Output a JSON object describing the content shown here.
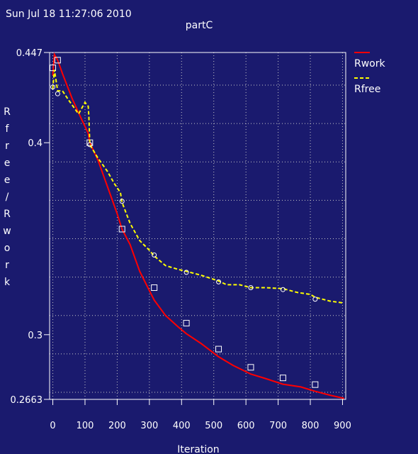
{
  "timestamp": "Sun Jul 18 11:27:06 2010",
  "chart_data": {
    "type": "line",
    "title": "partC",
    "xlabel": "Iteration",
    "ylabel": "Rfree / Rwork",
    "xlim": [
      -10,
      910
    ],
    "ylim": [
      0.2663,
      0.447
    ],
    "x_ticks": [
      "0",
      "100",
      "200",
      "300",
      "400",
      "500",
      "600",
      "700",
      "800",
      "900"
    ],
    "x_tick_values": [
      0,
      100,
      200,
      300,
      400,
      500,
      600,
      700,
      800,
      900
    ],
    "y_ticks": [
      "0.2663",
      "0.3",
      "0.4",
      "0.447"
    ],
    "y_tick_values": [
      0.2663,
      0.3,
      0.4,
      0.447
    ],
    "grid": true,
    "legend_position": "right",
    "series": [
      {
        "name": "Rwork",
        "color": "#ff0000",
        "style": "solid",
        "marker": "square",
        "x": [
          0,
          5,
          15,
          30,
          60,
          90,
          110,
          115,
          140,
          170,
          200,
          215,
          240,
          270,
          300,
          315,
          350,
          390,
          415,
          460,
          515,
          560,
          615,
          660,
          715,
          770,
          815,
          860,
          905
        ],
        "y": [
          0.435,
          0.446,
          0.443,
          0.436,
          0.423,
          0.412,
          0.405,
          0.4,
          0.391,
          0.377,
          0.363,
          0.355,
          0.347,
          0.333,
          0.323,
          0.318,
          0.31,
          0.304,
          0.3005,
          0.2955,
          0.2885,
          0.284,
          0.2795,
          0.2772,
          0.2742,
          0.2728,
          0.2705,
          0.2685,
          0.2668
        ],
        "marker_x": [
          0,
          15,
          115,
          215,
          315,
          415,
          515,
          615,
          715,
          815
        ],
        "marker_y": [
          0.439,
          0.443,
          0.4,
          0.355,
          0.3245,
          0.306,
          0.2925,
          0.283,
          0.2775,
          0.274
        ]
      },
      {
        "name": "Rfree",
        "color": "#ffff00",
        "style": "dashed",
        "marker": "circle",
        "x": [
          0,
          5,
          15,
          30,
          50,
          80,
          100,
          110,
          112,
          115,
          140,
          170,
          190,
          210,
          215,
          240,
          270,
          300,
          315,
          350,
          390,
          415,
          460,
          515,
          540,
          580,
          615,
          660,
          715,
          760,
          800,
          815,
          860,
          905
        ],
        "y": [
          0.428,
          0.438,
          0.427,
          0.427,
          0.422,
          0.415,
          0.421,
          0.419,
          0.414,
          0.399,
          0.392,
          0.385,
          0.379,
          0.374,
          0.369,
          0.358,
          0.349,
          0.344,
          0.341,
          0.336,
          0.334,
          0.333,
          0.331,
          0.328,
          0.326,
          0.326,
          0.3245,
          0.3245,
          0.324,
          0.322,
          0.321,
          0.3195,
          0.3175,
          0.3165
        ],
        "marker_x": [
          0,
          15,
          115,
          215,
          315,
          415,
          515,
          615,
          715,
          815
        ],
        "marker_y": [
          0.429,
          0.4255,
          0.399,
          0.3695,
          0.3415,
          0.3325,
          0.3275,
          0.3245,
          0.3235,
          0.3185
        ]
      }
    ]
  }
}
